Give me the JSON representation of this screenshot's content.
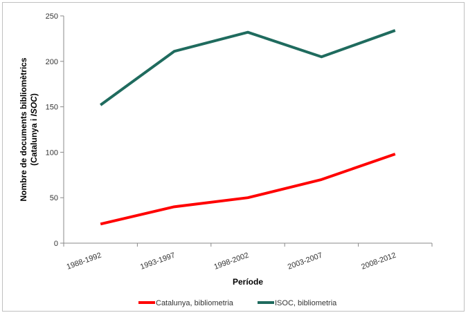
{
  "chart_data": {
    "type": "line",
    "categories": [
      "1988-1992",
      "1993-1997",
      "1998-2002",
      "2003-2007",
      "2008-2012"
    ],
    "series": [
      {
        "name": "Catalunya, bibliometria",
        "values": [
          21,
          40,
          50,
          70,
          98
        ],
        "color": "#ff0000"
      },
      {
        "name": "ISOC, bibliometria",
        "values": [
          152,
          211,
          232,
          205,
          234
        ],
        "color": "#1f6b5e"
      }
    ],
    "xlabel": "Període",
    "ylabel_line1": "Nombre de documents bibliomètrics",
    "ylabel_line2_prefix": "(Catalunya i ",
    "ylabel_line2_italic": "ISOC",
    "ylabel_line2_suffix": ")",
    "ylim": [
      0,
      250
    ],
    "yticks": [
      0,
      50,
      100,
      150,
      200,
      250
    ],
    "grid": false,
    "legend": "bottom"
  }
}
